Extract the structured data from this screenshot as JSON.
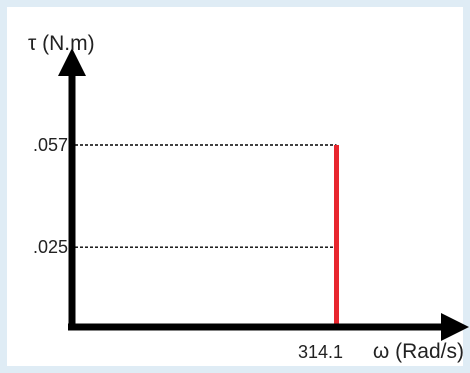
{
  "chart_data": {
    "type": "line",
    "ylabel": "τ (N.m)",
    "xlabel": "ω (Rad/s)",
    "y_ticks": [
      {
        "label": ".057",
        "value": 0.057
      },
      {
        "label": ".025",
        "value": 0.025
      }
    ],
    "x_ticks": [
      {
        "label": "314.1",
        "value": 314.1
      }
    ],
    "series": [
      {
        "x": [
          314.1,
          314.1
        ],
        "y": [
          0,
          0.057
        ],
        "color": "#e8262e"
      }
    ],
    "reference_lines": [
      {
        "type": "horizontal",
        "y": 0.057,
        "x_end": 314.1,
        "style": "dashed"
      },
      {
        "type": "horizontal",
        "y": 0.025,
        "x_end": 314.1,
        "style": "dashed"
      }
    ],
    "ylim": [
      0,
      0.083
    ],
    "xlim": [
      0,
      456
    ],
    "grid": false
  }
}
